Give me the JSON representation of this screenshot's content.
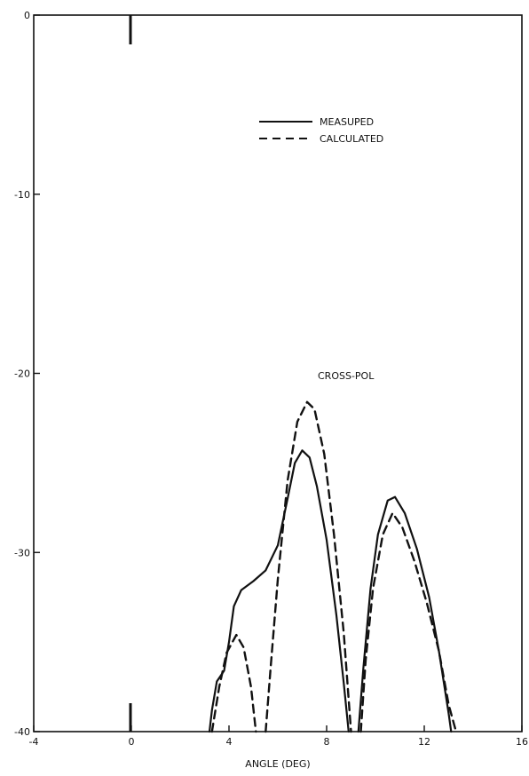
{
  "chart_data": {
    "type": "line",
    "title": "",
    "xlabel": "ANGLE (DEG)",
    "ylabel": "",
    "xlim": [
      -4,
      16
    ],
    "ylim": [
      -40,
      0
    ],
    "xticks": [
      -4,
      0,
      4,
      8,
      12,
      16
    ],
    "xtick_labels": [
      "-4",
      "0",
      "4",
      "8",
      "12",
      "16"
    ],
    "yticks": [
      0,
      -10,
      -20,
      -30,
      -40
    ],
    "ytick_labels": [
      "0",
      "-10",
      "-20",
      "-30",
      "-40"
    ],
    "grid": false,
    "legend_position": "top-right",
    "annotations": [
      {
        "text": "CROSS-POL",
        "x": 9.1,
        "y": -20.1
      }
    ],
    "series": [
      {
        "name": "MEASUPED",
        "style": "solid",
        "segments": [
          [
            [
              3.2,
              -40
            ],
            [
              3.3,
              -38.8
            ],
            [
              3.5,
              -37.2
            ],
            [
              3.8,
              -36.6
            ],
            [
              4.0,
              -35.0
            ],
            [
              4.2,
              -33.0
            ],
            [
              4.5,
              -32.1
            ],
            [
              5.0,
              -31.6
            ],
            [
              5.5,
              -31.0
            ],
            [
              6.0,
              -29.6
            ],
            [
              6.4,
              -27.0
            ],
            [
              6.7,
              -25.0
            ],
            [
              7.0,
              -24.3
            ],
            [
              7.3,
              -24.7
            ],
            [
              7.6,
              -26.3
            ],
            [
              8.0,
              -29.3
            ],
            [
              8.4,
              -33.5
            ],
            [
              8.7,
              -37.3
            ],
            [
              8.9,
              -40
            ]
          ],
          [
            [
              9.3,
              -40
            ],
            [
              9.5,
              -36.5
            ],
            [
              9.8,
              -32.0
            ],
            [
              10.1,
              -29.0
            ],
            [
              10.5,
              -27.1
            ],
            [
              10.8,
              -26.9
            ],
            [
              11.2,
              -27.8
            ],
            [
              11.7,
              -29.8
            ],
            [
              12.2,
              -32.5
            ],
            [
              12.6,
              -35.5
            ],
            [
              13.0,
              -39.0
            ],
            [
              13.1,
              -40
            ]
          ]
        ]
      },
      {
        "name": "CALCULATED",
        "style": "dashed",
        "segments": [
          [
            [
              3.3,
              -40
            ],
            [
              3.6,
              -37.5
            ],
            [
              3.9,
              -35.6
            ],
            [
              4.3,
              -34.6
            ],
            [
              4.6,
              -35.3
            ],
            [
              4.9,
              -37.5
            ],
            [
              5.1,
              -40
            ]
          ],
          [
            [
              5.5,
              -40
            ],
            [
              5.7,
              -36.5
            ],
            [
              6.0,
              -31.5
            ],
            [
              6.4,
              -26.0
            ],
            [
              6.8,
              -22.7
            ],
            [
              7.2,
              -21.6
            ],
            [
              7.5,
              -22.0
            ],
            [
              7.9,
              -24.5
            ],
            [
              8.3,
              -29.0
            ],
            [
              8.7,
              -34.5
            ],
            [
              9.0,
              -40
            ]
          ],
          [
            [
              9.4,
              -40
            ],
            [
              9.6,
              -36.0
            ],
            [
              9.9,
              -32.0
            ],
            [
              10.3,
              -29.0
            ],
            [
              10.7,
              -27.8
            ],
            [
              11.1,
              -28.6
            ],
            [
              11.6,
              -30.5
            ],
            [
              12.1,
              -32.8
            ],
            [
              12.6,
              -35.5
            ],
            [
              13.0,
              -38.5
            ],
            [
              13.3,
              -40
            ]
          ]
        ]
      }
    ]
  }
}
